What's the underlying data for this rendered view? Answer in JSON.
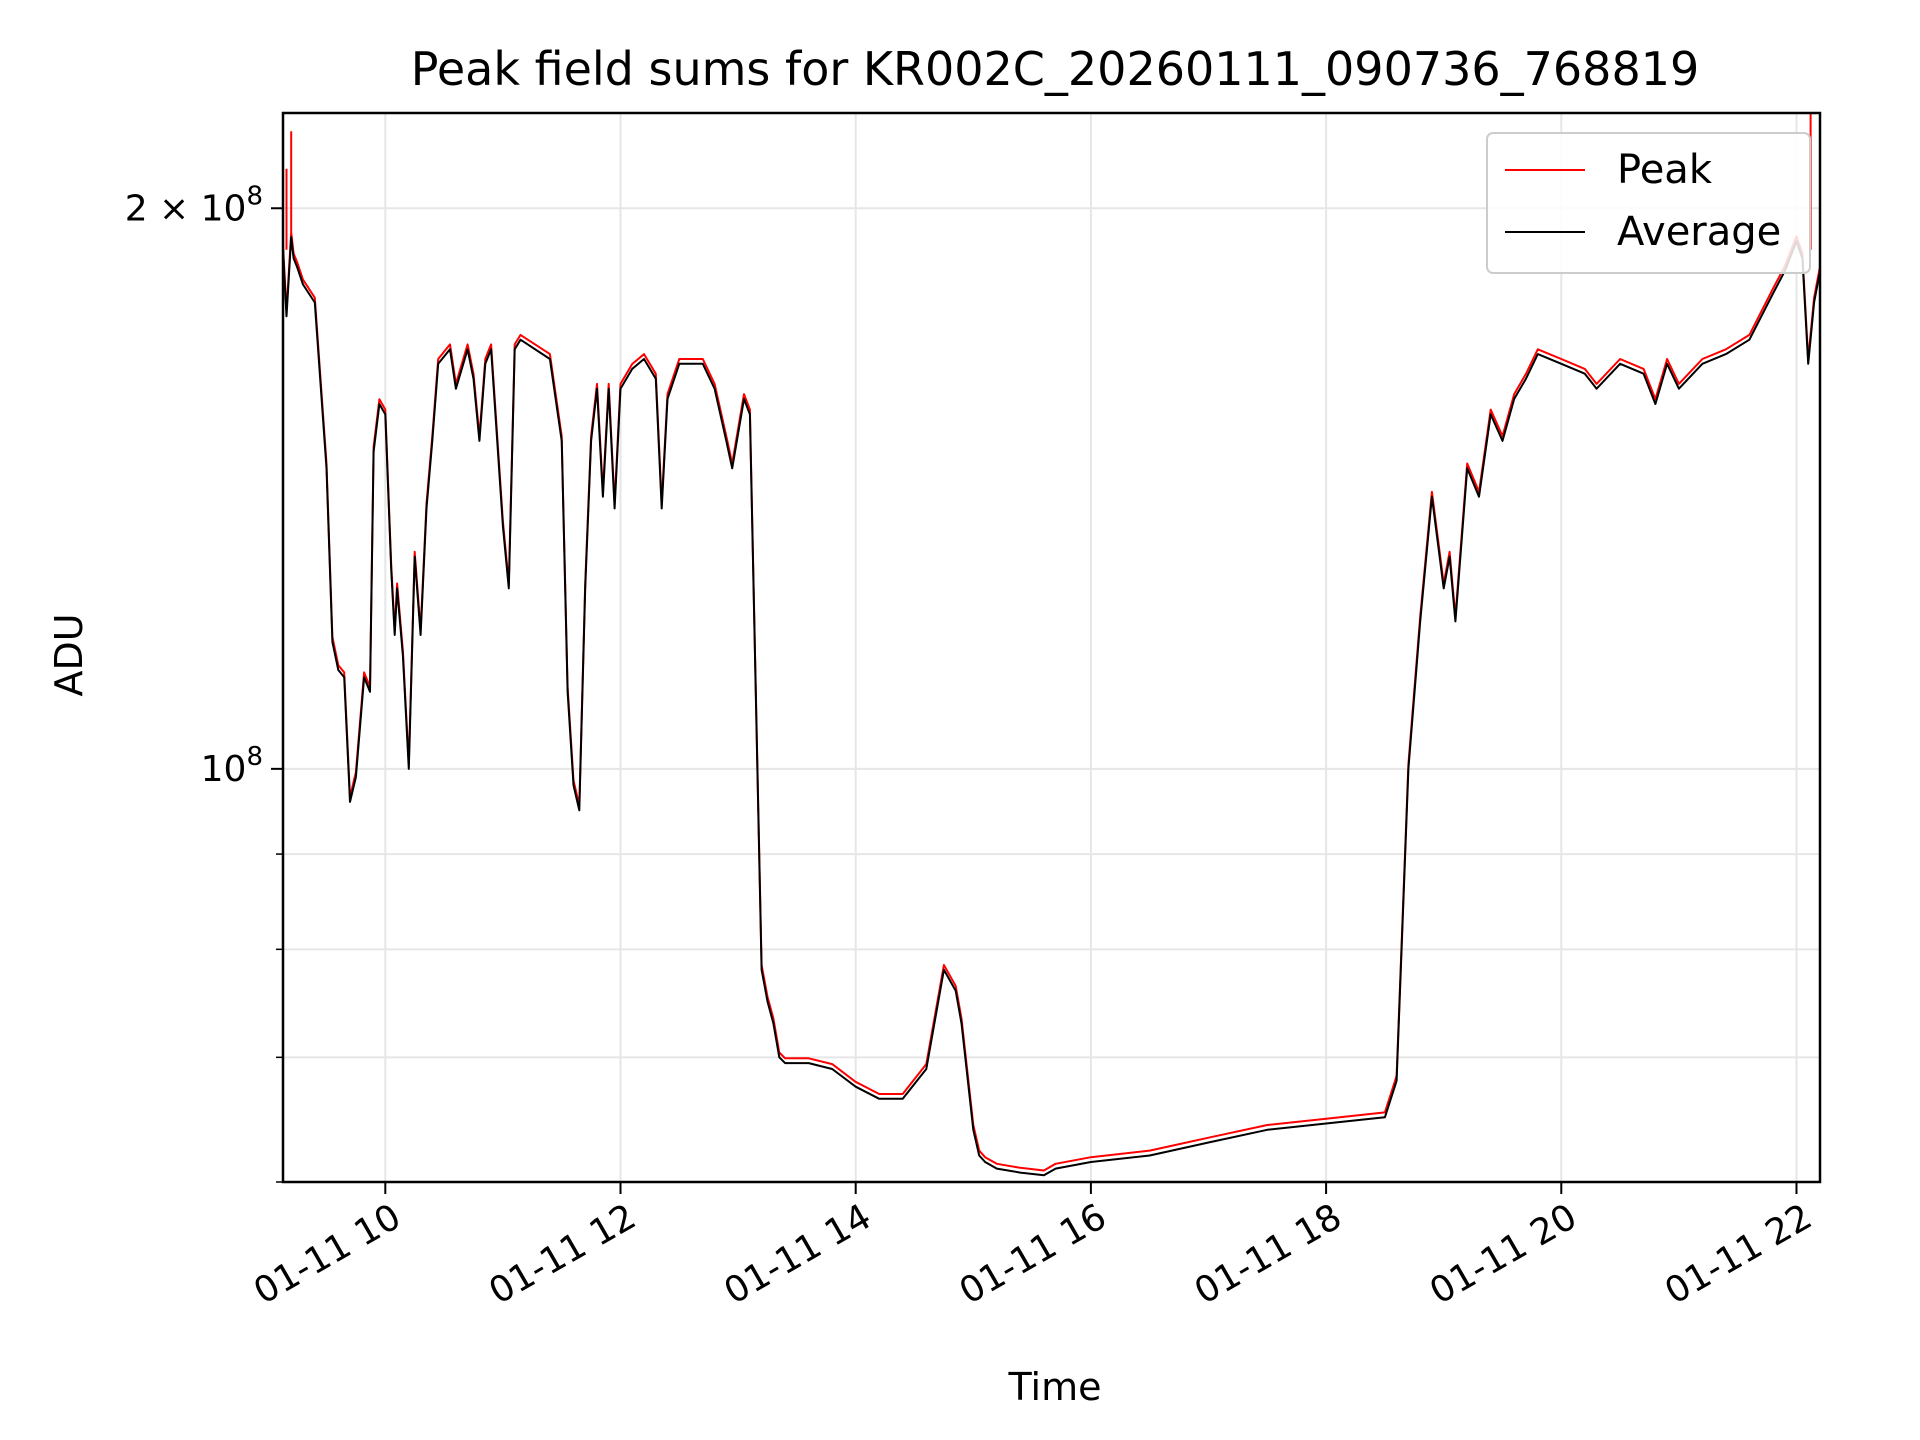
{
  "chart_data": {
    "type": "line",
    "title": "Peak field sums for KR002C_20260111_090736_768819",
    "xlabel": "Time",
    "ylabel": "ADU",
    "x_axis": {
      "kind": "time",
      "date_prefix": "01-11",
      "range_hours": [
        9.13,
        22.2
      ],
      "ticks": [
        10,
        12,
        14,
        16,
        18,
        20,
        22
      ],
      "tick_labels": [
        "01-11 10",
        "01-11 12",
        "01-11 14",
        "01-11 16",
        "01-11 18",
        "01-11 20",
        "01-11 22"
      ]
    },
    "y_axis": {
      "scale": "log",
      "range": [
        60000000,
        225000000
      ],
      "major_ticks": [
        100000000,
        200000000
      ],
      "major_tick_labels": [
        {
          "mantissa": "",
          "base": "10",
          "exp": "8"
        },
        {
          "mantissa": "2 × ",
          "base": "10",
          "exp": "8"
        }
      ],
      "minor_ticks": [
        60000000,
        70000000,
        80000000,
        90000000
      ]
    },
    "grid": true,
    "legend": {
      "position": "top-right",
      "entries": [
        {
          "label": "Peak",
          "color": "#ff0000"
        },
        {
          "label": "Average",
          "color": "#000000"
        }
      ]
    },
    "series": [
      {
        "name": "Average",
        "color": "#000000",
        "x": [
          9.13,
          9.16,
          9.2,
          9.22,
          9.25,
          9.3,
          9.4,
          9.5,
          9.55,
          9.6,
          9.65,
          9.7,
          9.75,
          9.82,
          9.87,
          9.9,
          9.95,
          10.0,
          10.05,
          10.08,
          10.1,
          10.15,
          10.2,
          10.25,
          10.3,
          10.35,
          10.4,
          10.45,
          10.55,
          10.6,
          10.7,
          10.75,
          10.8,
          10.85,
          10.9,
          11.0,
          11.05,
          11.1,
          11.15,
          11.4,
          11.5,
          11.55,
          11.6,
          11.65,
          11.7,
          11.75,
          11.8,
          11.85,
          11.9,
          11.95,
          12.0,
          12.1,
          12.2,
          12.3,
          12.35,
          12.4,
          12.5,
          12.6,
          12.7,
          12.8,
          12.9,
          12.95,
          13.05,
          13.1,
          13.2,
          13.25,
          13.3,
          13.35,
          13.4,
          13.6,
          13.8,
          14.0,
          14.2,
          14.4,
          14.6,
          14.75,
          14.85,
          14.9,
          15.0,
          15.05,
          15.1,
          15.2,
          15.4,
          15.6,
          15.7,
          16.0,
          16.5,
          17.0,
          17.5,
          18.0,
          18.5,
          18.6,
          18.7,
          18.8,
          18.9,
          19.0,
          19.05,
          19.1,
          19.2,
          19.3,
          19.4,
          19.5,
          19.6,
          19.7,
          19.8,
          20.0,
          20.2,
          20.3,
          20.5,
          20.7,
          20.8,
          20.9,
          21.0,
          21.2,
          21.4,
          21.6,
          21.8,
          21.9,
          22.0,
          22.05,
          22.1,
          22.15,
          22.2
        ],
        "values": [
          190000000,
          175000000,
          193000000,
          188000000,
          186000000,
          182000000,
          178000000,
          145000000,
          117000000,
          113000000,
          112000000,
          96000000,
          99000000,
          112000000,
          110000000,
          148000000,
          157000000,
          155000000,
          128000000,
          118000000,
          125000000,
          115000000,
          100000000,
          130000000,
          118000000,
          138000000,
          150000000,
          165000000,
          168000000,
          160000000,
          168000000,
          162000000,
          150000000,
          165000000,
          168000000,
          135000000,
          125000000,
          168000000,
          170000000,
          166000000,
          150000000,
          110000000,
          98000000,
          95000000,
          125000000,
          150000000,
          160000000,
          140000000,
          160000000,
          138000000,
          160000000,
          164000000,
          166000000,
          162000000,
          138000000,
          158000000,
          165000000,
          165000000,
          165000000,
          160000000,
          150000000,
          145000000,
          158000000,
          155000000,
          78000000,
          75000000,
          73000000,
          70000000,
          69500000,
          69500000,
          69000000,
          67500000,
          66500000,
          66500000,
          69000000,
          78000000,
          76000000,
          73000000,
          64000000,
          62000000,
          61500000,
          61000000,
          60700000,
          60500000,
          61000000,
          61500000,
          62000000,
          63000000,
          64000000,
          64500000,
          65000000,
          68000000,
          100000000,
          120000000,
          140000000,
          125000000,
          130000000,
          120000000,
          145000000,
          140000000,
          155000000,
          150000000,
          158000000,
          162000000,
          167000000,
          165000000,
          163000000,
          160000000,
          165000000,
          163000000,
          157000000,
          165000000,
          160000000,
          165000000,
          167000000,
          170000000,
          180000000,
          185000000,
          192000000,
          188000000,
          165000000,
          178000000,
          185000000
        ]
      }
    ],
    "peak_spikes": [
      {
        "x": 9.16,
        "value": 210000000
      },
      {
        "x": 9.2,
        "value": 220000000
      },
      {
        "x": 22.12,
        "value": 230000000
      }
    ]
  }
}
